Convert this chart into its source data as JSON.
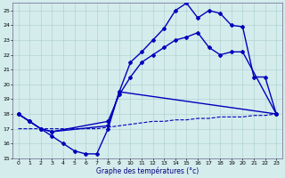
{
  "xlabel": "Graphe des températures (°c)",
  "background_color": "#d4ecec",
  "grid_color": "#aacccc",
  "line_color": "#0000bb",
  "xlim": [
    -0.5,
    23.5
  ],
  "ylim": [
    15,
    25.5
  ],
  "yticks": [
    15,
    16,
    17,
    18,
    19,
    20,
    21,
    22,
    23,
    24,
    25
  ],
  "xticks": [
    0,
    1,
    2,
    3,
    4,
    5,
    6,
    7,
    8,
    9,
    10,
    11,
    12,
    13,
    14,
    15,
    16,
    17,
    18,
    19,
    20,
    21,
    22,
    23
  ],
  "series": [
    {
      "x": [
        0,
        1,
        2,
        3,
        8,
        9,
        10,
        11,
        12,
        13,
        14,
        15,
        16,
        17,
        18,
        19,
        20,
        21,
        22,
        23
      ],
      "y": [
        18,
        17.5,
        17,
        16.8,
        17.2,
        19.5,
        21.5,
        22.2,
        23.0,
        23.8,
        25.0,
        25.5,
        24.5,
        25.0,
        24.8,
        24.0,
        23.9,
        20.5,
        20.5,
        18.0
      ],
      "lw": 1.0,
      "marker": "D",
      "ms": 2.0,
      "ls": "-"
    },
    {
      "x": [
        0,
        1,
        2,
        3,
        8,
        9,
        10,
        11,
        12,
        13,
        14,
        15,
        16,
        17,
        18,
        19,
        20,
        23
      ],
      "y": [
        18,
        17.5,
        17,
        16.8,
        17.5,
        19.3,
        20.5,
        21.5,
        22.0,
        22.5,
        23.0,
        23.2,
        23.5,
        22.5,
        22.0,
        22.2,
        22.2,
        18.0
      ],
      "lw": 1.0,
      "marker": "D",
      "ms": 2.0,
      "ls": "-"
    },
    {
      "x": [
        0,
        1,
        2,
        3,
        4,
        5,
        6,
        7,
        8,
        9,
        23
      ],
      "y": [
        18,
        17.5,
        17.0,
        16.5,
        16.0,
        15.5,
        15.3,
        15.3,
        17.0,
        19.5,
        18.0
      ],
      "lw": 1.0,
      "marker": "D",
      "ms": 2.0,
      "ls": "-"
    },
    {
      "x": [
        0,
        1,
        2,
        3,
        4,
        5,
        6,
        7,
        8,
        9,
        10,
        11,
        12,
        13,
        14,
        15,
        16,
        17,
        18,
        19,
        20,
        21,
        22,
        23
      ],
      "y": [
        17.0,
        17.0,
        17.0,
        17.0,
        17.0,
        17.0,
        17.0,
        17.0,
        17.1,
        17.2,
        17.3,
        17.4,
        17.5,
        17.5,
        17.6,
        17.6,
        17.7,
        17.7,
        17.8,
        17.8,
        17.8,
        17.9,
        17.9,
        18.0
      ],
      "lw": 0.8,
      "marker": null,
      "ms": 0,
      "ls": "--"
    }
  ]
}
